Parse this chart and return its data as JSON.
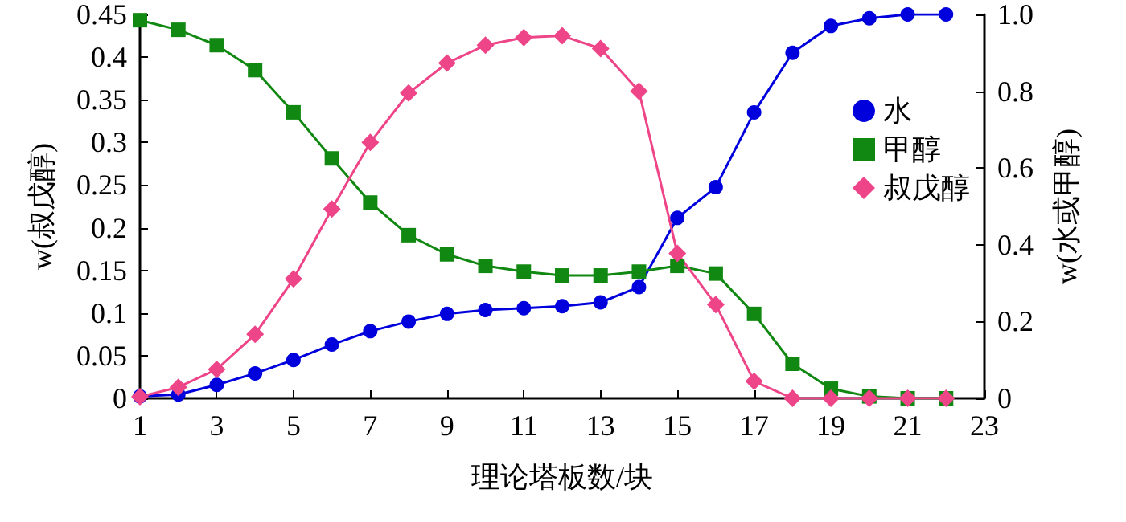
{
  "chart_data": {
    "type": "line",
    "xlabel": "理论塔板数/块",
    "ylabel": "w(叔戊醇)",
    "y2label": "w(水或甲醇)",
    "x": [
      1,
      2,
      3,
      4,
      5,
      6,
      7,
      8,
      9,
      10,
      11,
      12,
      13,
      14,
      15,
      16,
      17,
      18,
      19,
      20,
      21,
      22
    ],
    "xlim": [
      1,
      23
    ],
    "xticks": [
      1,
      3,
      5,
      7,
      9,
      11,
      13,
      15,
      17,
      19,
      21,
      23
    ],
    "ylim": [
      0,
      0.45
    ],
    "yticks": [
      0,
      0.05,
      0.1,
      0.15,
      0.2,
      0.25,
      0.3,
      0.35,
      0.4,
      0.45
    ],
    "y2lim": [
      0,
      1
    ],
    "y2ticks": [
      0,
      0.2,
      0.4,
      0.6,
      0.8,
      {
        "value": 1,
        "label": "1.0"
      }
    ],
    "grid": false,
    "legend": "right",
    "series": [
      {
        "name": "水",
        "color": "#0000dd",
        "marker": "circle",
        "axis": "y2",
        "values": [
          0.005,
          0.01,
          0.035,
          0.065,
          0.1,
          0.14,
          0.175,
          0.2,
          0.22,
          0.23,
          0.235,
          0.24,
          0.25,
          0.29,
          0.47,
          0.55,
          0.745,
          0.9,
          0.97,
          0.99,
          1.0,
          1.0
        ]
      },
      {
        "name": "甲醇",
        "color": "#118811",
        "marker": "square",
        "axis": "y2",
        "values": [
          0.985,
          0.96,
          0.92,
          0.855,
          0.745,
          0.625,
          0.51,
          0.425,
          0.375,
          0.345,
          0.33,
          0.32,
          0.32,
          0.33,
          0.345,
          0.325,
          0.22,
          0.09,
          0.025,
          0.005,
          0,
          0
        ]
      },
      {
        "name": "叔戊醇",
        "color": "#ee4488",
        "marker": "diamond",
        "values": [
          0.002,
          0.013,
          0.034,
          0.075,
          0.14,
          0.222,
          0.3,
          0.358,
          0.393,
          0.414,
          0.423,
          0.425,
          0.41,
          0.36,
          0.17,
          0.11,
          0.02,
          0,
          0,
          0,
          0,
          0
        ]
      }
    ]
  }
}
